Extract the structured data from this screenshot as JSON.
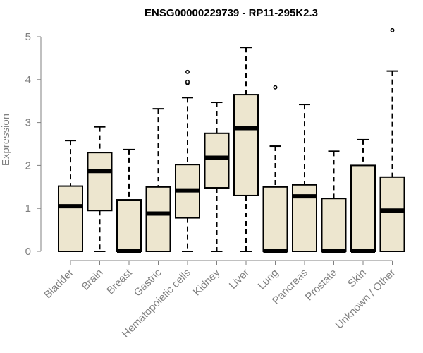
{
  "chart_data": {
    "type": "box",
    "title": "ENSG00000229739 - RP11-295K2.3",
    "xlabel": "",
    "ylabel": "Expression",
    "ylim": [
      0,
      5
    ],
    "yticks": [
      "0",
      "1",
      "2",
      "3",
      "4",
      "5"
    ],
    "grid": false,
    "colors": {
      "box_fill": "#ede6cf",
      "box_stroke": "#000000",
      "axis": "#808080",
      "text": "#808080"
    },
    "categories": [
      "Bladder",
      "Brain",
      "Breast",
      "Gastric",
      "Hematopoietic cells",
      "Kidney",
      "Liver",
      "Lung",
      "Pancreas",
      "Prostate",
      "Skin",
      "Unknown / Other"
    ],
    "boxes": [
      {
        "min": 0,
        "q1": 0,
        "median": 1.05,
        "q3": 1.52,
        "max": 2.58,
        "outliers": []
      },
      {
        "min": 0,
        "q1": 0.95,
        "median": 1.87,
        "q3": 2.3,
        "max": 2.9,
        "outliers": []
      },
      {
        "min": 0,
        "q1": 0,
        "median": 0,
        "q3": 1.2,
        "max": 2.37,
        "outliers": []
      },
      {
        "min": 0,
        "q1": 0,
        "median": 0.88,
        "q3": 1.5,
        "max": 3.32,
        "outliers": []
      },
      {
        "min": 0,
        "q1": 0.78,
        "median": 1.42,
        "q3": 2.02,
        "max": 3.58,
        "outliers": [
          3.92,
          3.95,
          4.18
        ]
      },
      {
        "min": 0,
        "q1": 1.48,
        "median": 2.18,
        "q3": 2.75,
        "max": 3.47,
        "outliers": []
      },
      {
        "min": 0,
        "q1": 1.3,
        "median": 2.87,
        "q3": 3.65,
        "max": 4.75,
        "outliers": []
      },
      {
        "min": 0,
        "q1": 0,
        "median": 0,
        "q3": 1.5,
        "max": 2.45,
        "outliers": [
          3.82
        ]
      },
      {
        "min": 0,
        "q1": 0,
        "median": 1.28,
        "q3": 1.55,
        "max": 3.42,
        "outliers": []
      },
      {
        "min": 0,
        "q1": 0,
        "median": 0,
        "q3": 1.23,
        "max": 2.33,
        "outliers": []
      },
      {
        "min": 0,
        "q1": 0,
        "median": 0,
        "q3": 2.0,
        "max": 2.6,
        "outliers": []
      },
      {
        "min": 0,
        "q1": 0,
        "median": 0.95,
        "q3": 1.73,
        "max": 4.2,
        "outliers": [
          5.15
        ]
      }
    ]
  }
}
